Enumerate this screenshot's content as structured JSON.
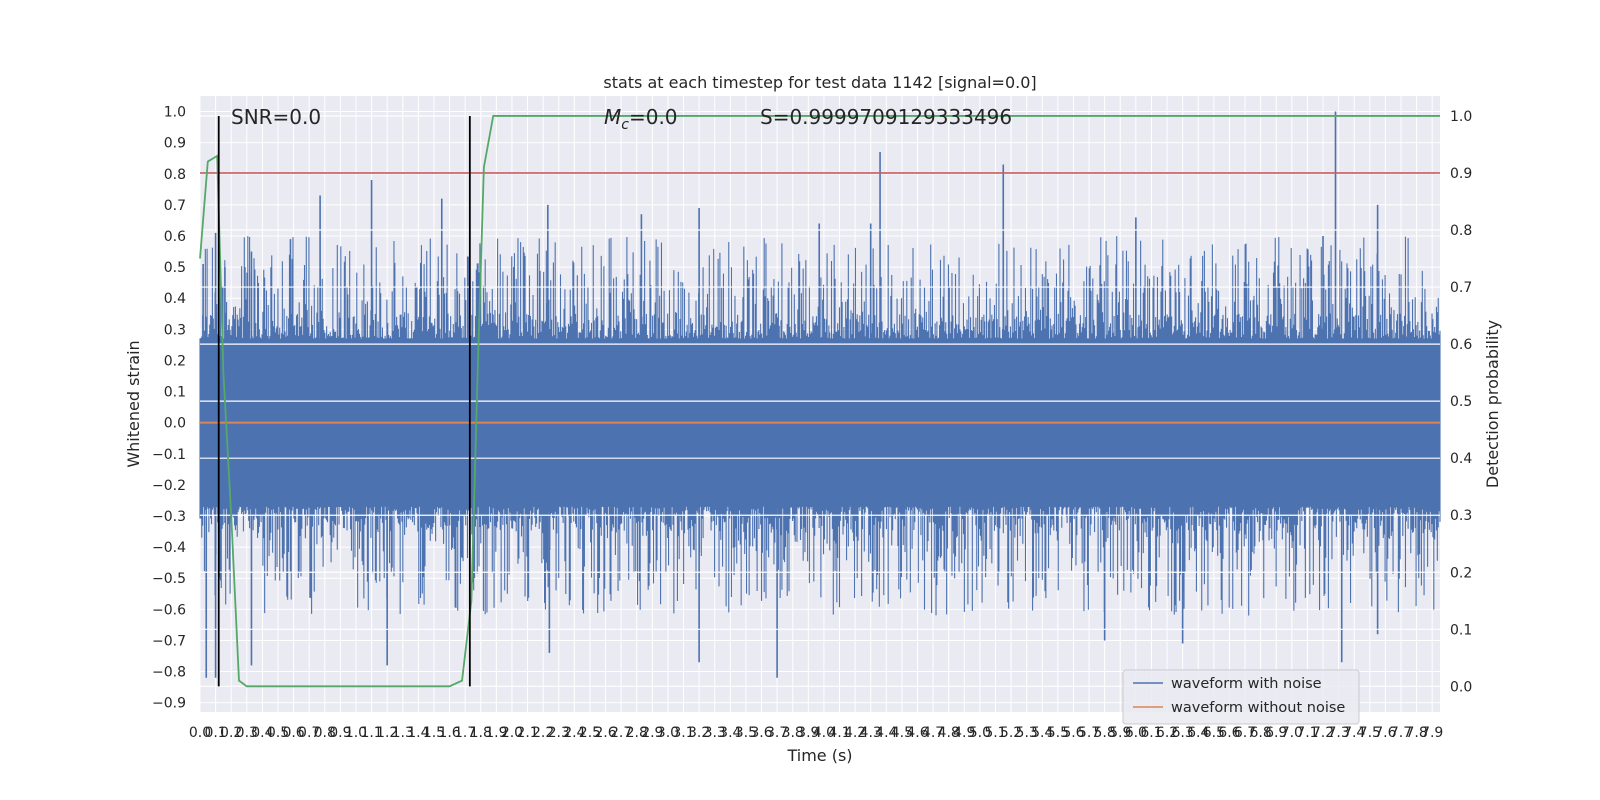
{
  "chart_data": {
    "type": "line",
    "title": "stats at each timestep for test data 1142 [signal=0.0]",
    "xlabel": "Time (s)",
    "ylabel": "Whitened strain",
    "y2label": "Detection probability",
    "xlim": [
      0.0,
      7.95
    ],
    "ylim": [
      -0.93,
      1.05
    ],
    "y2lim": [
      -0.045,
      1.035
    ],
    "x_ticks": [
      0.0,
      0.1,
      0.2,
      0.3,
      0.4,
      0.5,
      0.6,
      0.7,
      0.8,
      0.9,
      1.0,
      1.1,
      1.2,
      1.3,
      1.4,
      1.5,
      1.6,
      1.7,
      1.8,
      1.9,
      2.0,
      2.1,
      2.2,
      2.3,
      2.4,
      2.5,
      2.6,
      2.7,
      2.8,
      2.9,
      3.0,
      3.1,
      3.2,
      3.3,
      3.4,
      3.5,
      3.6,
      3.7,
      3.8,
      3.9,
      4.0,
      4.1,
      4.2,
      4.3,
      4.4,
      4.5,
      4.6,
      4.7,
      4.8,
      4.9,
      5.0,
      5.1,
      5.2,
      5.3,
      5.4,
      5.5,
      5.6,
      5.7,
      5.8,
      5.9,
      6.0,
      6.1,
      6.2,
      6.3,
      6.4,
      6.5,
      6.6,
      6.7,
      6.8,
      6.9,
      7.0,
      7.1,
      7.2,
      7.3,
      7.4,
      7.5,
      7.6,
      7.7,
      7.8,
      7.9
    ],
    "x_tick_labels": [
      "0.0",
      "0.1",
      "0.2",
      "0.3",
      "0.4",
      "0.5",
      "0.6",
      "0.7",
      "0.8",
      "0.9",
      "1.0",
      "1.1",
      "1.2",
      "1.3",
      "1.4",
      "1.5",
      "1.6",
      "1.7",
      "1.8",
      "1.9",
      "2.0",
      "2.1",
      "2.2",
      "2.3",
      "2.4",
      "2.5",
      "2.6",
      "2.7",
      "2.8",
      "2.9",
      "3.0",
      "3.1",
      "3.2",
      "3.3",
      "3.4",
      "3.5",
      "3.6",
      "3.7",
      "3.8",
      "3.9",
      "4.0",
      "4.1",
      "4.2",
      "4.3",
      "4.4",
      "4.5",
      "4.6",
      "4.7",
      "4.8",
      "4.9",
      "5.0",
      "5.1",
      "5.2",
      "5.3",
      "5.4",
      "5.5",
      "5.6",
      "5.7",
      "5.8",
      "5.9",
      "6.0",
      "6.1",
      "6.2",
      "6.3",
      "6.4",
      "6.5",
      "6.6",
      "6.7",
      "6.8",
      "6.9",
      "7.0",
      "7.1",
      "7.2",
      "7.3",
      "7.4",
      "7.5",
      "7.6",
      "7.7",
      "7.8",
      "7.9"
    ],
    "y_ticks": [
      1.0,
      0.9,
      0.8,
      0.7,
      0.6,
      0.5,
      0.4,
      0.3,
      0.2,
      0.1,
      0.0,
      -0.1,
      -0.2,
      -0.3,
      -0.4,
      -0.5,
      -0.6,
      -0.7,
      -0.8,
      -0.9
    ],
    "y_tick_labels": [
      "1.0",
      "0.9",
      "0.8",
      "0.7",
      "0.6",
      "0.5",
      "0.4",
      "0.3",
      "0.2",
      "0.1",
      "0.0",
      "−0.1",
      "−0.2",
      "−0.3",
      "−0.4",
      "−0.5",
      "−0.6",
      "−0.7",
      "−0.8",
      "−0.9"
    ],
    "y2_ticks": [
      1.0,
      0.9,
      0.8,
      0.7,
      0.6,
      0.5,
      0.4,
      0.3,
      0.2,
      0.1,
      0.0
    ],
    "y2_tick_labels": [
      "1.0",
      "0.9",
      "0.8",
      "0.7",
      "0.6",
      "0.5",
      "0.4",
      "0.3",
      "0.2",
      "0.1",
      "0.0"
    ],
    "grid": true,
    "series": [
      {
        "name": "waveform with noise",
        "axis": "left",
        "color": "#4c72b0",
        "kind": "noise-envelope",
        "band_upper": 0.27,
        "band_lower": -0.27,
        "peaks_upper": [
          [
            0.02,
            0.51
          ],
          [
            0.1,
            0.61
          ],
          [
            0.16,
            0.5
          ],
          [
            0.33,
            0.55
          ],
          [
            0.58,
            0.59
          ],
          [
            0.77,
            0.73
          ],
          [
            1.1,
            0.78
          ],
          [
            1.55,
            0.72
          ],
          [
            2.23,
            0.7
          ],
          [
            2.83,
            0.67
          ],
          [
            3.2,
            0.69
          ],
          [
            3.97,
            0.64
          ],
          [
            4.3,
            0.64
          ],
          [
            4.36,
            0.87
          ],
          [
            5.15,
            0.83
          ],
          [
            6.0,
            0.66
          ],
          [
            7.2,
            0.6
          ],
          [
            7.28,
            1.0
          ],
          [
            7.55,
            0.7
          ]
        ],
        "peaks_lower": [
          [
            0.04,
            -0.82
          ],
          [
            0.1,
            -0.82
          ],
          [
            0.33,
            -0.78
          ],
          [
            1.2,
            -0.78
          ],
          [
            2.24,
            -0.74
          ],
          [
            3.2,
            -0.77
          ],
          [
            3.7,
            -0.82
          ],
          [
            5.8,
            -0.7
          ],
          [
            6.3,
            -0.71
          ],
          [
            7.32,
            -0.77
          ],
          [
            7.55,
            -0.68
          ]
        ]
      },
      {
        "name": "waveform without noise",
        "axis": "left",
        "color": "#dd8452",
        "kind": "line",
        "x": [
          0.0,
          7.95
        ],
        "y": [
          0.0,
          0.0
        ]
      },
      {
        "axis": "right",
        "color": "#55a868",
        "kind": "line",
        "x": [
          0.0,
          0.05,
          0.11,
          0.15,
          0.2,
          0.25,
          0.3,
          1.3,
          1.6,
          1.68,
          1.74,
          1.78,
          1.82,
          1.88,
          2.0,
          7.95
        ],
        "y": [
          0.75,
          0.92,
          0.93,
          0.55,
          0.3,
          0.01,
          0.0,
          0.0,
          0.0,
          0.01,
          0.15,
          0.55,
          0.91,
          1.0,
          1.0,
          1.0
        ]
      },
      {
        "axis": "right",
        "color": "#c44e52",
        "kind": "hline",
        "y": 0.9
      }
    ],
    "vlines": [
      0.12,
      1.73
    ],
    "annotations": {
      "snr": "SNR=0.0",
      "mc_symbol": "M",
      "mc_sub": "c",
      "mc_value": "=0.0",
      "s": "S=0.9999709129333496"
    },
    "legend": {
      "placement": "lower-right",
      "entries": [
        {
          "label": "waveform with noise",
          "color": "#4c72b0"
        },
        {
          "label": "waveform without noise",
          "color": "#dd8452"
        }
      ]
    }
  }
}
